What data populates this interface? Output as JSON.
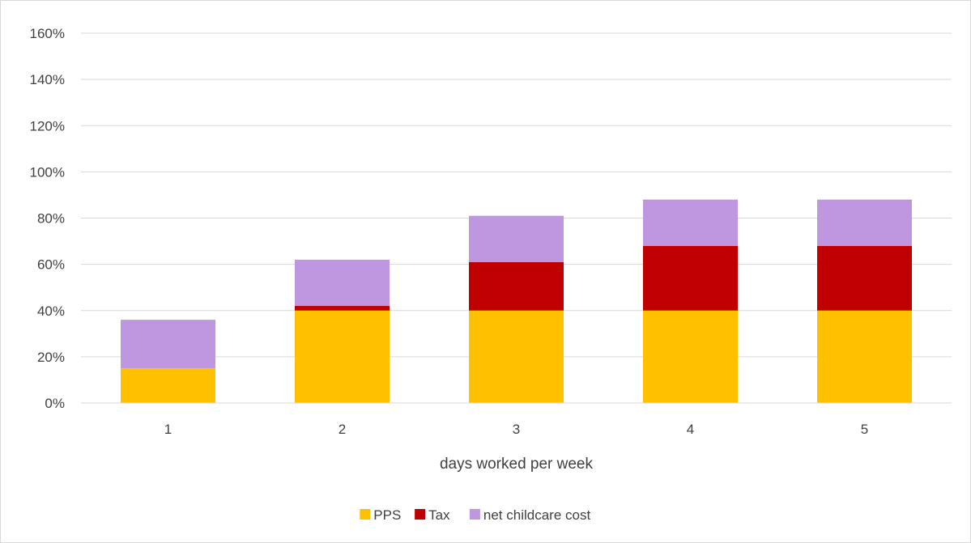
{
  "chart_data": {
    "type": "bar",
    "stacked": true,
    "categories": [
      "1",
      "2",
      "3",
      "4",
      "5"
    ],
    "series": [
      {
        "name": "PPS",
        "color": "#FFC000",
        "values": [
          15,
          40,
          40,
          40,
          40
        ]
      },
      {
        "name": "Tax",
        "color": "#C00000",
        "values": [
          0,
          2,
          21,
          28,
          28
        ]
      },
      {
        "name": "net childcare cost",
        "color": "#BF96E0",
        "values": [
          21,
          20,
          20,
          20,
          20
        ]
      }
    ],
    "title": "",
    "xlabel": "days worked per week",
    "ylabel": "",
    "ylim": [
      0,
      160
    ],
    "yticks": [
      0,
      20,
      40,
      60,
      80,
      100,
      120,
      140,
      160
    ],
    "ytick_suffix": "%",
    "grid": true,
    "legend_position": "bottom"
  }
}
